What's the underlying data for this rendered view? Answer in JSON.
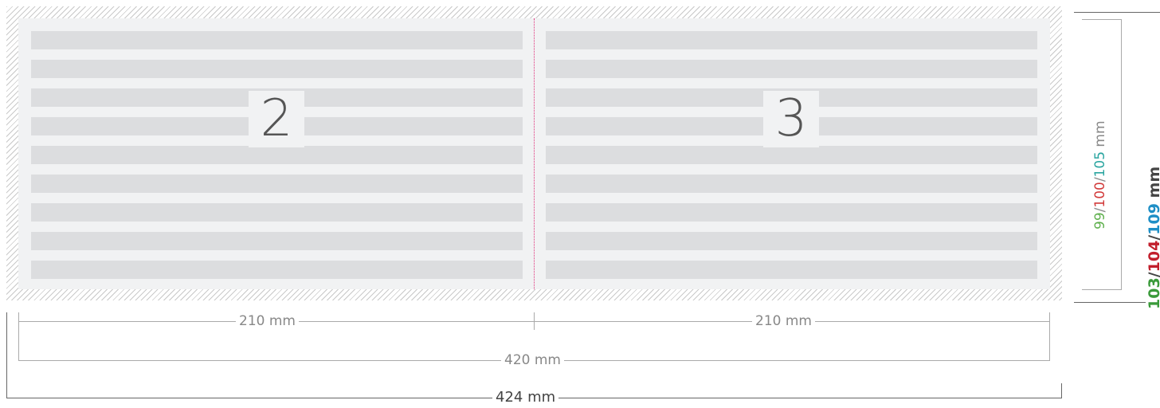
{
  "pages": [
    {
      "number": "2"
    },
    {
      "number": "3"
    }
  ],
  "text_line_count": 9,
  "dimensions": {
    "panel_left": "210 mm",
    "panel_right": "210 mm",
    "total_trim": "420 mm",
    "total_bleed": "424 mm"
  },
  "height_inner": {
    "v1": "99",
    "sep1": "/",
    "v2": "100",
    "sep2": "/",
    "v3": "105",
    "unit": " mm"
  },
  "height_outer": {
    "v1": "103",
    "sep1": "/",
    "v2": "104",
    "sep2": "/",
    "v3": "109",
    "unit": " mm"
  },
  "colors": {
    "fold_line": "#e0307a",
    "green": "#5fb04d",
    "red": "#d23a3a",
    "teal": "#2aa5a0",
    "blue": "#1e8fc6"
  }
}
